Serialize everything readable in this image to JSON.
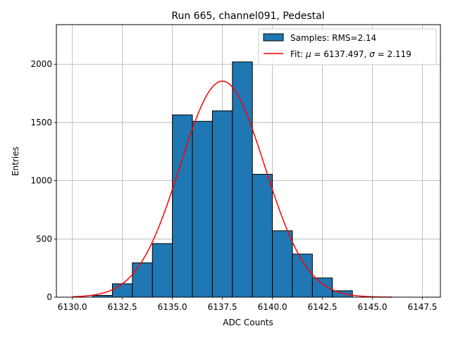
{
  "chart_data": {
    "type": "bar",
    "title": "Run 665, channel091, Pedestal",
    "xlabel": "ADC Counts",
    "ylabel": "Entries",
    "xlim": [
      6129.2,
      6148.4
    ],
    "ylim": [
      0,
      2340
    ],
    "xticks": [
      6130.0,
      6132.5,
      6135.0,
      6137.5,
      6140.0,
      6142.5,
      6145.0,
      6147.5
    ],
    "xtick_labels": [
      "6130.0",
      "6132.5",
      "6135.0",
      "6137.5",
      "6140.0",
      "6142.5",
      "6145.0",
      "6147.5"
    ],
    "yticks": [
      0,
      500,
      1000,
      1500,
      2000
    ],
    "ytick_labels": [
      "0",
      "500",
      "1000",
      "1500",
      "2000"
    ],
    "grid": true,
    "legend_position": "top-right",
    "histogram": {
      "name": "Samples: RMS=2.14",
      "color": "#1f77b4",
      "edge_color": "#000000",
      "bin_width": 1.0,
      "bin_starts": [
        6130,
        6131,
        6132,
        6133,
        6134,
        6135,
        6136,
        6137,
        6138,
        6139,
        6140,
        6141,
        6142,
        6143,
        6144,
        6145,
        6146,
        6147
      ],
      "values": [
        0,
        15,
        115,
        295,
        460,
        1565,
        1510,
        1600,
        2020,
        1055,
        570,
        370,
        165,
        55,
        0,
        0,
        0,
        0
      ]
    },
    "fit": {
      "name_prefix": "Fit: ",
      "mu_symbol": "μ",
      "sigma_symbol": "σ",
      "mu_text": " = 6137.497, ",
      "sigma_text": " = 2.119",
      "color": "#ff0000",
      "function": "gaussian",
      "mu": 6137.497,
      "sigma": 2.119,
      "amplitude": 1855,
      "x_range": [
        6130.0,
        6146.0
      ]
    }
  }
}
